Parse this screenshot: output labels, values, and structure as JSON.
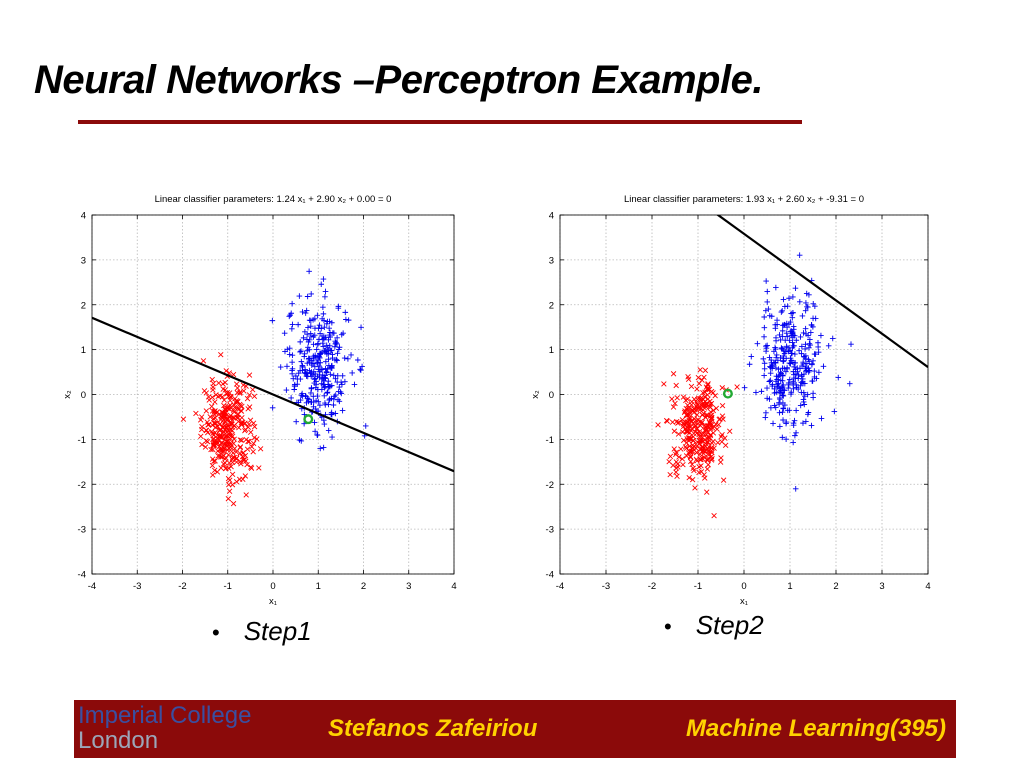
{
  "slide": {
    "title": "Neural Networks –Perceptron Example.",
    "bullets": [
      "Step1",
      "Step2"
    ],
    "bullet_glyph": "•"
  },
  "footer": {
    "logo_line1": "Imperial College",
    "logo_line2": "London",
    "author": "Stefanos Zafeiriou",
    "course": "Machine Learning(395)"
  },
  "colors": {
    "title_rule": "#8b0a0a",
    "footer_bg": "#8b0a0a",
    "footer_text": "#ffd200",
    "class_red": "#ff0000",
    "class_blue": "#0000ee",
    "misclassified_marker": "#22aa33"
  },
  "chart_data": [
    {
      "type": "scatter",
      "title": "Linear classifier parameters: 1.24 x₁ + 2.90 x₂ + 0.00 = 0",
      "xlabel": "x₁",
      "ylabel": "x₂",
      "xlim": [
        -4,
        4
      ],
      "ylim": [
        -4,
        4
      ],
      "xticks": [
        -4,
        -3,
        -2,
        -1,
        0,
        1,
        2,
        3,
        4
      ],
      "yticks": [
        -4,
        -3,
        -2,
        -1,
        0,
        1,
        2,
        3,
        4
      ],
      "grid": true,
      "series": [
        {
          "marker": "x",
          "color": "#ff0000",
          "center": [
            -1.0,
            -0.75
          ],
          "spread": [
            0.28,
            0.55
          ],
          "count": 320
        },
        {
          "marker": "+",
          "color": "#0000ee",
          "center": [
            1.0,
            0.65
          ],
          "spread": [
            0.35,
            0.75
          ],
          "count": 320
        }
      ],
      "line": {
        "w1": 1.24,
        "w2": 2.9,
        "b": 0.0
      },
      "highlight": {
        "x": 0.78,
        "y": -0.55,
        "color": "#22aa33"
      }
    },
    {
      "type": "scatter",
      "title": "Linear classifier parameters: 1.93 x₁ + 2.60 x₂ + -9.31 = 0",
      "xlabel": "x₁",
      "ylabel": "x₂",
      "xlim": [
        -4,
        4
      ],
      "ylim": [
        -4,
        4
      ],
      "xticks": [
        -4,
        -3,
        -2,
        -1,
        0,
        1,
        2,
        3,
        4
      ],
      "yticks": [
        -4,
        -3,
        -2,
        -1,
        0,
        1,
        2,
        3,
        4
      ],
      "grid": true,
      "series": [
        {
          "marker": "x",
          "color": "#ff0000",
          "center": [
            -1.0,
            -0.75
          ],
          "spread": [
            0.28,
            0.55
          ],
          "count": 320
        },
        {
          "marker": "+",
          "color": "#0000ee",
          "center": [
            1.0,
            0.65
          ],
          "spread": [
            0.35,
            0.75
          ],
          "count": 320
        }
      ],
      "line": {
        "w1": 1.93,
        "w2": 2.6,
        "b": -9.31
      },
      "highlight": {
        "x": -0.35,
        "y": 0.02,
        "color": "#22aa33"
      }
    }
  ]
}
